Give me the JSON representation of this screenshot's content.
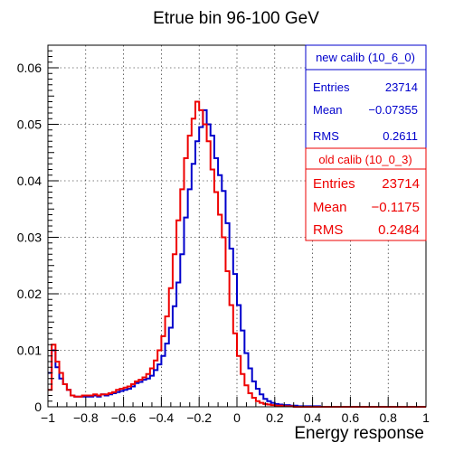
{
  "chart_data": {
    "type": "histogram",
    "title": "Etrue bin 96-100 GeV",
    "xlabel": "Energy response",
    "ylabel": "",
    "xlim": [
      -1,
      1
    ],
    "ylim": [
      0,
      0.064
    ],
    "xticks": [
      "−1",
      "−0.8",
      "−0.6",
      "−0.4",
      "−0.2",
      "0",
      "0.2",
      "0.4",
      "0.6",
      "0.8",
      "1"
    ],
    "yticks": [
      "0",
      "0.01",
      "0.02",
      "0.03",
      "0.04",
      "0.05",
      "0.06"
    ],
    "grid": true,
    "bin_width": 0.02,
    "bin_edges_start": -1,
    "series": [
      {
        "name": "new calib (10_6_0)",
        "color": "#0000cc",
        "values": [
          0.006,
          0.01,
          0.007,
          0.005,
          0.004,
          0.003,
          0.002,
          0.0018,
          0.0018,
          0.0018,
          0.0018,
          0.0018,
          0.002,
          0.0018,
          0.0022,
          0.002,
          0.0022,
          0.0024,
          0.0026,
          0.0028,
          0.003,
          0.0032,
          0.0036,
          0.0042,
          0.0044,
          0.0048,
          0.005,
          0.0055,
          0.0065,
          0.0075,
          0.009,
          0.0112,
          0.014,
          0.0178,
          0.022,
          0.027,
          0.0335,
          0.0385,
          0.043,
          0.047,
          0.0495,
          0.0525,
          0.05,
          0.048,
          0.044,
          0.041,
          0.0382,
          0.0325,
          0.028,
          0.0235,
          0.018,
          0.0135,
          0.0095,
          0.0068,
          0.0045,
          0.0032,
          0.0022,
          0.0014,
          0.001,
          0.0007,
          0.0005,
          0.0004,
          0.0003,
          0.0003,
          0.0002,
          0.0002,
          0.0001,
          0.0001,
          0.0001,
          0.0001,
          0.0001,
          0.0001,
          0,
          0,
          0,
          0,
          0,
          0,
          0,
          0,
          0,
          0,
          0,
          0,
          0,
          0,
          0,
          0,
          0,
          0,
          0,
          0,
          0,
          0,
          0,
          0,
          0,
          0,
          0,
          0
        ]
      },
      {
        "name": "old calib (10_0_3)",
        "color": "#ee0000",
        "values": [
          0.003,
          0.011,
          0.008,
          0.006,
          0.004,
          0.003,
          0.002,
          0.0018,
          0.0018,
          0.002,
          0.002,
          0.002,
          0.0022,
          0.002,
          0.0022,
          0.0022,
          0.0024,
          0.0026,
          0.003,
          0.0032,
          0.0034,
          0.0036,
          0.004,
          0.0045,
          0.0048,
          0.0052,
          0.0058,
          0.0068,
          0.0082,
          0.01,
          0.0125,
          0.016,
          0.021,
          0.027,
          0.033,
          0.0385,
          0.044,
          0.048,
          0.051,
          0.054,
          0.0525,
          0.05,
          0.047,
          0.042,
          0.038,
          0.034,
          0.03,
          0.024,
          0.018,
          0.013,
          0.009,
          0.0058,
          0.0038,
          0.0024,
          0.0016,
          0.001,
          0.0007,
          0.0005,
          0.0004,
          0.0003,
          0.0002,
          0.0002,
          0.0001,
          0.0001,
          0.0001,
          0,
          0,
          0,
          0,
          0,
          0,
          0,
          0,
          0,
          0,
          0,
          0,
          0,
          0,
          0,
          0,
          0,
          0,
          0,
          0,
          0,
          0,
          0,
          0,
          0,
          0,
          0,
          0,
          0,
          0,
          0,
          0,
          0,
          0,
          0
        ]
      }
    ],
    "stats": [
      {
        "title": "new calib (10_6_0)",
        "entries_label": "Entries",
        "entries": "23714",
        "mean_label": "Mean",
        "mean": "−0.07355",
        "rms_label": "RMS",
        "rms": "0.2611",
        "color": "#0000cc"
      },
      {
        "title": "old calib (10_0_3)",
        "entries_label": "Entries",
        "entries": "23714",
        "mean_label": "Mean",
        "mean": "−0.1175",
        "rms_label": "RMS",
        "rms": "0.2484",
        "color": "#ee0000"
      }
    ]
  }
}
